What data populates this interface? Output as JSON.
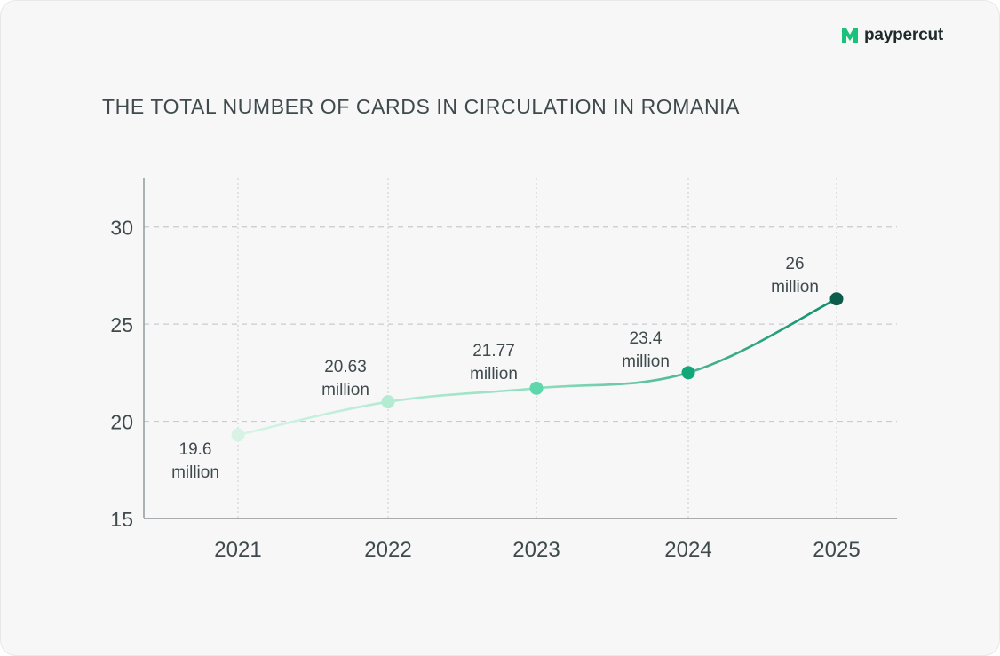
{
  "brand": {
    "name": "paypercut",
    "color": "#19c27a"
  },
  "chart_data": {
    "type": "line",
    "title": "THE TOTAL NUMBER OF CARDS IN CIRCULATION IN ROMANIA",
    "xlabel": "",
    "ylabel": "",
    "categories": [
      "2021",
      "2022",
      "2023",
      "2024",
      "2025"
    ],
    "series": [
      {
        "values": [
          19.6,
          20.63,
          21.77,
          23.4,
          26
        ]
      }
    ],
    "plotted_y": [
      19.3,
      21.0,
      21.7,
      22.5,
      26.3
    ],
    "data_labels": [
      {
        "value": "19.6",
        "unit": "million"
      },
      {
        "value": "20.63",
        "unit": "million"
      },
      {
        "value": "21.77",
        "unit": "million"
      },
      {
        "value": "23.4",
        "unit": "million"
      },
      {
        "value": "26",
        "unit": "million"
      }
    ],
    "ylim": [
      15,
      32.5
    ],
    "yticks": [
      15,
      20,
      25,
      30
    ],
    "grid": {
      "horizontal": "dashed",
      "vertical": "dotted"
    },
    "legend": "none",
    "point_colors": [
      "#d8f3e6",
      "#b3ebd3",
      "#5fd6ac",
      "#10a878",
      "#0b5c4b"
    ],
    "line_gradient": [
      "#d8f5e8",
      "#8fdfbf",
      "#0f8f6b"
    ],
    "text_color": "#3f4a4d",
    "axis_color": "#8d9396",
    "grid_color": "#c9cccf"
  }
}
